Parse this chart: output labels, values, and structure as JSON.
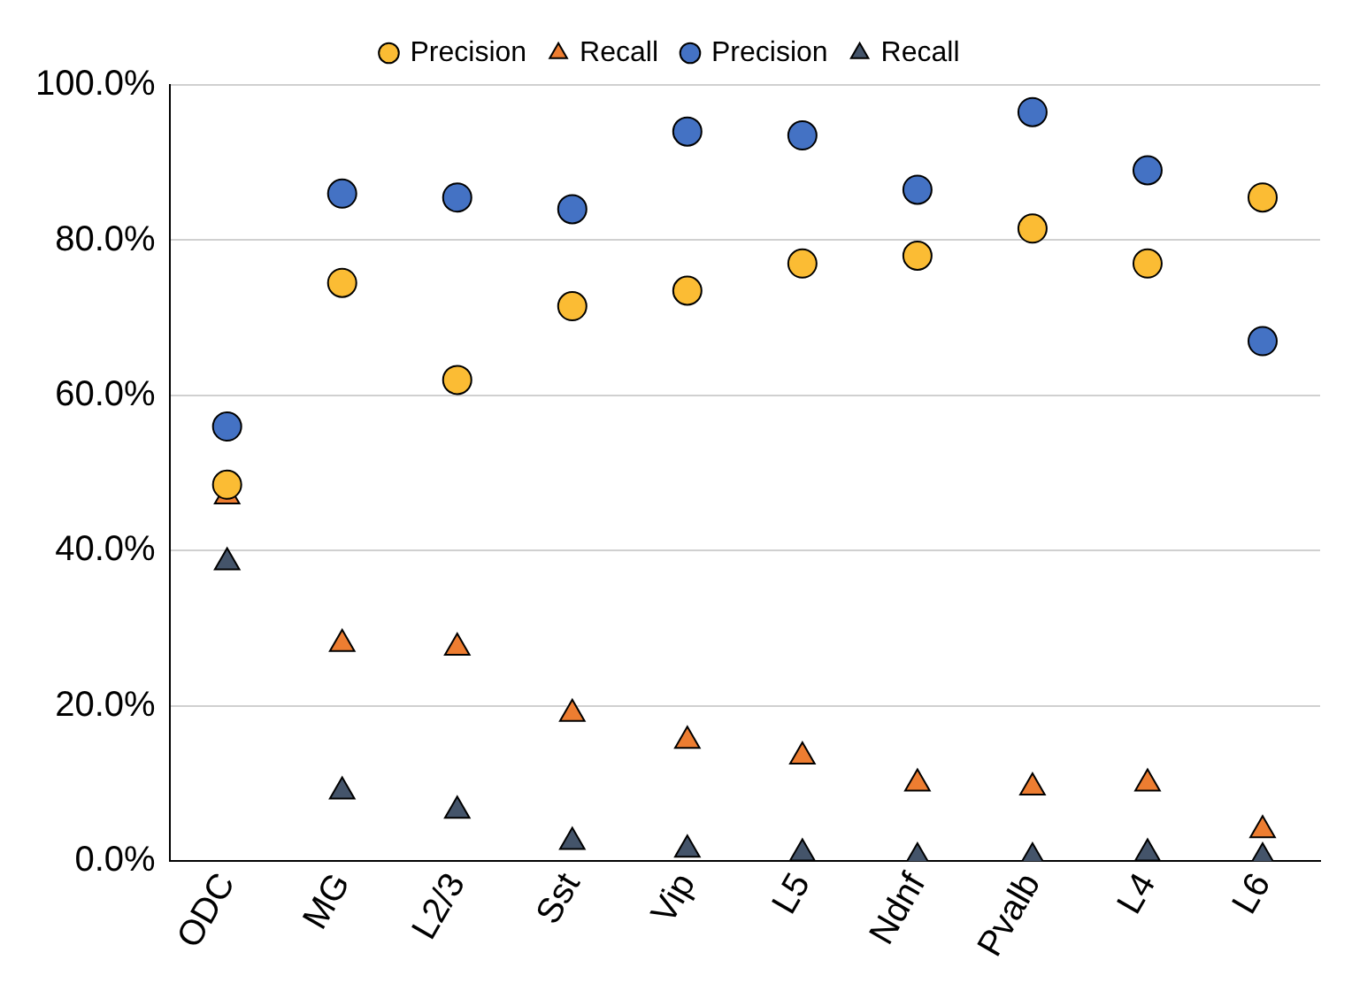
{
  "chart_data": {
    "type": "scatter",
    "categories": [
      "ODC",
      "MG",
      "L2/3",
      "Sst",
      "Vip",
      "L5",
      "Ndnf",
      "Pvalb",
      "L4",
      "L6"
    ],
    "series": [
      {
        "name": "Precision",
        "color": "#fbbc34",
        "marker": "circle",
        "values": [
          48.5,
          74.5,
          62,
          71.5,
          73.5,
          77,
          78,
          81.5,
          77,
          85.5
        ]
      },
      {
        "name": "Recall",
        "color": "#ed7d31",
        "marker": "triangle",
        "values": [
          47,
          28,
          27.5,
          19,
          15.5,
          13.5,
          10,
          9.5,
          10,
          4
        ]
      },
      {
        "name": "Precision",
        "color": "#4472c4",
        "marker": "circle",
        "values": [
          56,
          86,
          85.5,
          84,
          94,
          93.5,
          86.5,
          96.5,
          89,
          67
        ]
      },
      {
        "name": "Recall",
        "color": "#44546a",
        "marker": "triangle",
        "values": [
          38.5,
          9,
          6.5,
          2.5,
          1.5,
          1,
          0.5,
          0.5,
          1,
          0.5
        ]
      }
    ],
    "ylim": [
      0,
      100
    ],
    "yticks": [
      {
        "value": 0,
        "label": "0.0%"
      },
      {
        "value": 20,
        "label": "20.0%"
      },
      {
        "value": 40,
        "label": "40.0%"
      },
      {
        "value": 60,
        "label": "60.0%"
      },
      {
        "value": 80,
        "label": "80.0%"
      },
      {
        "value": 100,
        "label": "100.0%"
      }
    ],
    "grid": "y",
    "legend": "top"
  }
}
